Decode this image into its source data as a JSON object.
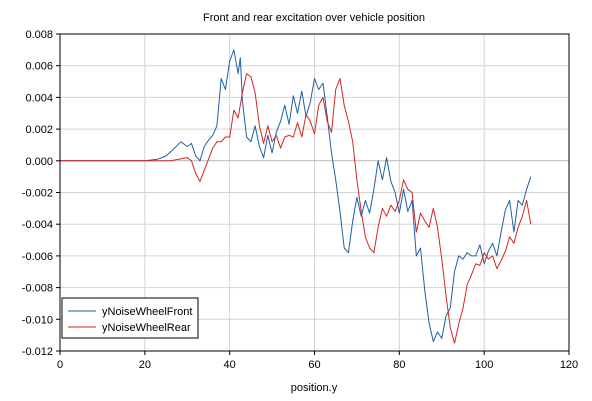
{
  "chart_data": {
    "type": "line",
    "title": "Front and rear excitation over vehicle position",
    "xlabel": "position.y",
    "ylabel": "",
    "xlim": [
      0,
      120
    ],
    "ylim": [
      -0.012,
      0.008
    ],
    "x_ticks": [
      0,
      20,
      40,
      60,
      80,
      100,
      120
    ],
    "y_ticks": [
      -0.012,
      -0.01,
      -0.008,
      -0.006,
      -0.004,
      -0.002,
      0.0,
      0.002,
      0.004,
      0.006,
      0.008
    ],
    "x_tick_labels": [
      "0",
      "20",
      "40",
      "60",
      "80",
      "100",
      "120"
    ],
    "y_tick_labels": [
      "-0.012",
      "-0.010",
      "-0.008",
      "-0.006",
      "-0.004",
      "-0.002",
      "0.000",
      "0.002",
      "0.004",
      "0.006",
      "0.008"
    ],
    "grid": true,
    "legend_position": "bottom-left",
    "series": [
      {
        "name": "yNoiseWheelFront",
        "color": "#1f5fa6",
        "points": [
          [
            0,
            0.0
          ],
          [
            10,
            0.0
          ],
          [
            20,
            0.0
          ],
          [
            23,
            0.0001
          ],
          [
            25,
            0.0003
          ],
          [
            27,
            0.0008
          ],
          [
            28.5,
            0.0012
          ],
          [
            30,
            0.0009
          ],
          [
            31,
            0.0011
          ],
          [
            32,
            0.0003
          ],
          [
            33,
            0.0
          ],
          [
            34,
            0.0009
          ],
          [
            35,
            0.0013
          ],
          [
            36,
            0.0016
          ],
          [
            37,
            0.0022
          ],
          [
            38,
            0.0052
          ],
          [
            39,
            0.0045
          ],
          [
            40,
            0.0063
          ],
          [
            41,
            0.007
          ],
          [
            42,
            0.0055
          ],
          [
            42.5,
            0.0065
          ],
          [
            43,
            0.0038
          ],
          [
            44,
            0.0015
          ],
          [
            45,
            0.0012
          ],
          [
            46,
            0.0022
          ],
          [
            47,
            0.0009
          ],
          [
            48,
            0.0002
          ],
          [
            49,
            0.0016
          ],
          [
            50,
            0.0005
          ],
          [
            51,
            0.0018
          ],
          [
            52,
            0.0025
          ],
          [
            53,
            0.0035
          ],
          [
            54,
            0.0023
          ],
          [
            55,
            0.0041
          ],
          [
            56,
            0.003
          ],
          [
            57,
            0.0044
          ],
          [
            58,
            0.0028
          ],
          [
            59,
            0.0037
          ],
          [
            60,
            0.0052
          ],
          [
            61,
            0.0045
          ],
          [
            62,
            0.0049
          ],
          [
            63,
            0.0028
          ],
          [
            64,
            0.0005
          ],
          [
            65,
            -0.0012
          ],
          [
            66,
            -0.0032
          ],
          [
            67,
            -0.0055
          ],
          [
            68,
            -0.0058
          ],
          [
            69,
            -0.0038
          ],
          [
            70,
            -0.0023
          ],
          [
            71,
            -0.0035
          ],
          [
            72,
            -0.0025
          ],
          [
            73,
            -0.0033
          ],
          [
            74,
            -0.0018
          ],
          [
            75,
            0.0
          ],
          [
            76,
            -0.0012
          ],
          [
            77,
            0.0002
          ],
          [
            78,
            -0.0013
          ],
          [
            79,
            -0.002
          ],
          [
            80,
            -0.0033
          ],
          [
            81,
            -0.0018
          ],
          [
            82,
            -0.0032
          ],
          [
            83,
            -0.0025
          ],
          [
            84,
            -0.006
          ],
          [
            85,
            -0.0055
          ],
          [
            86,
            -0.0082
          ],
          [
            87,
            -0.0102
          ],
          [
            88,
            -0.0114
          ],
          [
            89,
            -0.0108
          ],
          [
            90,
            -0.0112
          ],
          [
            91,
            -0.0098
          ],
          [
            92,
            -0.0093
          ],
          [
            93,
            -0.007
          ],
          [
            94,
            -0.006
          ],
          [
            95,
            -0.0062
          ],
          [
            96,
            -0.0058
          ],
          [
            97,
            -0.006
          ],
          [
            98,
            -0.006
          ],
          [
            99,
            -0.0053
          ],
          [
            100,
            -0.0065
          ],
          [
            101,
            -0.0057
          ],
          [
            102,
            -0.0052
          ],
          [
            103,
            -0.006
          ],
          [
            104,
            -0.0045
          ],
          [
            105,
            -0.0031
          ],
          [
            106,
            -0.0025
          ],
          [
            107,
            -0.0045
          ],
          [
            108,
            -0.0025
          ],
          [
            109,
            -0.0028
          ],
          [
            110,
            -0.0018
          ],
          [
            111,
            -0.001
          ]
        ]
      },
      {
        "name": "yNoiseWheelRear",
        "color": "#d62424",
        "points": [
          [
            0,
            0.0
          ],
          [
            10,
            0.0
          ],
          [
            20,
            0.0
          ],
          [
            26,
            0.0
          ],
          [
            28,
            0.0001
          ],
          [
            30,
            0.0002
          ],
          [
            31,
            0.0
          ],
          [
            32,
            -0.0008
          ],
          [
            33,
            -0.0013
          ],
          [
            34,
            -0.0006
          ],
          [
            35,
            0.0001
          ],
          [
            36,
            0.0008
          ],
          [
            37,
            0.0012
          ],
          [
            38,
            0.0012
          ],
          [
            39,
            0.0015
          ],
          [
            40,
            0.0015
          ],
          [
            41,
            0.0032
          ],
          [
            42,
            0.0027
          ],
          [
            43,
            0.0043
          ],
          [
            44,
            0.0055
          ],
          [
            45,
            0.0053
          ],
          [
            46,
            0.0043
          ],
          [
            47,
            0.0022
          ],
          [
            48,
            0.0011
          ],
          [
            49,
            0.0022
          ],
          [
            50,
            0.0012
          ],
          [
            51,
            0.0016
          ],
          [
            52,
            0.0008
          ],
          [
            53,
            0.0015
          ],
          [
            54,
            0.0016
          ],
          [
            55,
            0.0015
          ],
          [
            56,
            0.0024
          ],
          [
            57,
            0.0015
          ],
          [
            58,
            0.0029
          ],
          [
            59,
            0.0025
          ],
          [
            60,
            0.0017
          ],
          [
            61,
            0.0035
          ],
          [
            62,
            0.004
          ],
          [
            63,
            0.0025
          ],
          [
            64,
            0.0018
          ],
          [
            65,
            0.0045
          ],
          [
            66,
            0.0052
          ],
          [
            67,
            0.0035
          ],
          [
            68,
            0.0025
          ],
          [
            69,
            0.0012
          ],
          [
            70,
            -0.0012
          ],
          [
            71,
            -0.0032
          ],
          [
            72,
            -0.0048
          ],
          [
            73,
            -0.0055
          ],
          [
            74,
            -0.0058
          ],
          [
            75,
            -0.0042
          ],
          [
            76,
            -0.003
          ],
          [
            77,
            -0.0035
          ],
          [
            78,
            -0.0028
          ],
          [
            79,
            -0.0032
          ],
          [
            80,
            -0.0025
          ],
          [
            81,
            -0.0012
          ],
          [
            82,
            -0.0018
          ],
          [
            83,
            -0.002
          ],
          [
            84,
            -0.0045
          ],
          [
            85,
            -0.0033
          ],
          [
            86,
            -0.0038
          ],
          [
            87,
            -0.0042
          ],
          [
            88,
            -0.003
          ],
          [
            89,
            -0.0042
          ],
          [
            90,
            -0.0062
          ],
          [
            91,
            -0.0085
          ],
          [
            92,
            -0.0105
          ],
          [
            93,
            -0.0115
          ],
          [
            94,
            -0.0103
          ],
          [
            95,
            -0.0093
          ],
          [
            96,
            -0.0078
          ],
          [
            97,
            -0.0072
          ],
          [
            98,
            -0.0065
          ],
          [
            99,
            -0.0066
          ],
          [
            100,
            -0.0058
          ],
          [
            101,
            -0.0062
          ],
          [
            102,
            -0.006
          ],
          [
            103,
            -0.0068
          ],
          [
            104,
            -0.0063
          ],
          [
            105,
            -0.0057
          ],
          [
            106,
            -0.0048
          ],
          [
            107,
            -0.0052
          ],
          [
            108,
            -0.0042
          ],
          [
            109,
            -0.0035
          ],
          [
            110,
            -0.0025
          ],
          [
            111,
            -0.004
          ]
        ]
      }
    ]
  }
}
